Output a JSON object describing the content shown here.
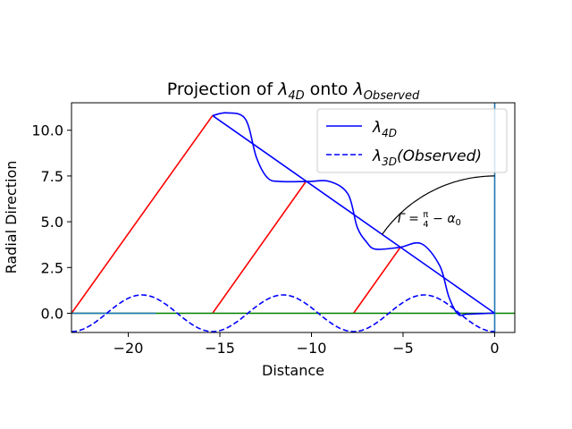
{
  "chart_data": {
    "type": "line",
    "title": "Projection of λ4D onto λObserved",
    "title_parts": {
      "pre": "Projection of ",
      "sym1": "λ",
      "sub1": "4D",
      "mid": " onto ",
      "sym2": "λ",
      "sub2": "Observed"
    },
    "xlabel": "Distance",
    "ylabel": "Radial Direction",
    "xlim": [
      -23.1,
      1.1
    ],
    "ylim": [
      -1.05,
      11.5
    ],
    "xticks": [
      -20,
      -15,
      -10,
      -5,
      0
    ],
    "yticks": [
      0.0,
      2.5,
      5.0,
      7.5,
      10.0
    ],
    "xtick_labels": [
      "−20",
      "−15",
      "−10",
      "−5",
      "0"
    ],
    "ytick_labels": [
      "0.0",
      "2.5",
      "5.0",
      "7.5",
      "10.0"
    ],
    "grid": false,
    "legend_position": "top-right",
    "legend": [
      {
        "sym": "λ",
        "sub": "4D",
        "suffix": "",
        "style": "solid",
        "color": "#0000ff"
      },
      {
        "sym": "λ",
        "sub": "3D",
        "suffix": "(Observed)",
        "style": "dashed",
        "color": "#0000ff"
      }
    ],
    "series": [
      {
        "name": "λ4D",
        "color": "#0000ff",
        "style": "solid",
        "x": [
          -15.4,
          -14.6,
          -13.6,
          -13.0,
          -12.4,
          -11.7,
          -10.2,
          -9.0,
          -8.0,
          -7.5,
          -7.0,
          -6.5,
          -5.2,
          -4.0,
          -3.0,
          -2.5,
          -2.0,
          -1.5,
          -0.3,
          0.0
        ],
        "y": [
          10.8,
          10.95,
          10.6,
          8.5,
          7.4,
          7.2,
          7.2,
          7.2,
          6.5,
          4.7,
          3.9,
          3.5,
          3.6,
          3.8,
          2.6,
          0.9,
          -0.05,
          -0.05,
          0.0,
          0.0
        ]
      },
      {
        "name": "λ3D(Observed)",
        "color": "#0000ff",
        "style": "dashed",
        "function": "cos",
        "amplitude": 1.0,
        "period": 7.7,
        "x_start": -23.1,
        "x_end": 0.0
      }
    ],
    "lines": [
      {
        "color": "#0000ff",
        "x": [
          -15.4,
          0.0
        ],
        "y": [
          10.8,
          0.0
        ]
      },
      {
        "color": "#ff0000",
        "x": [
          -23.1,
          -15.4
        ],
        "y": [
          0.0,
          10.8
        ]
      },
      {
        "color": "#ff0000",
        "x": [
          -15.4,
          -10.3
        ],
        "y": [
          0.0,
          7.2
        ]
      },
      {
        "color": "#ff0000",
        "x": [
          -7.7,
          -5.15
        ],
        "y": [
          0.0,
          3.6
        ]
      },
      {
        "color": "#008000",
        "x": [
          -23.1,
          1.1
        ],
        "y": [
          0.0,
          0.0
        ]
      },
      {
        "color": "#1f77b4",
        "x": [
          -23.1,
          -18.5
        ],
        "y": [
          0.0,
          0.0
        ]
      },
      {
        "color": "#1f77b4",
        "x": [
          0.0,
          0.0
        ],
        "y": [
          -1.05,
          11.5
        ]
      }
    ],
    "arc": {
      "color": "#000000",
      "center": [
        0.0,
        0.0
      ],
      "radius": 7.5,
      "from_deg": 90,
      "to_deg": 145
    },
    "annotation": {
      "text": "Γ = π/4 − α0",
      "x": -5.3,
      "y": 4.95
    }
  }
}
